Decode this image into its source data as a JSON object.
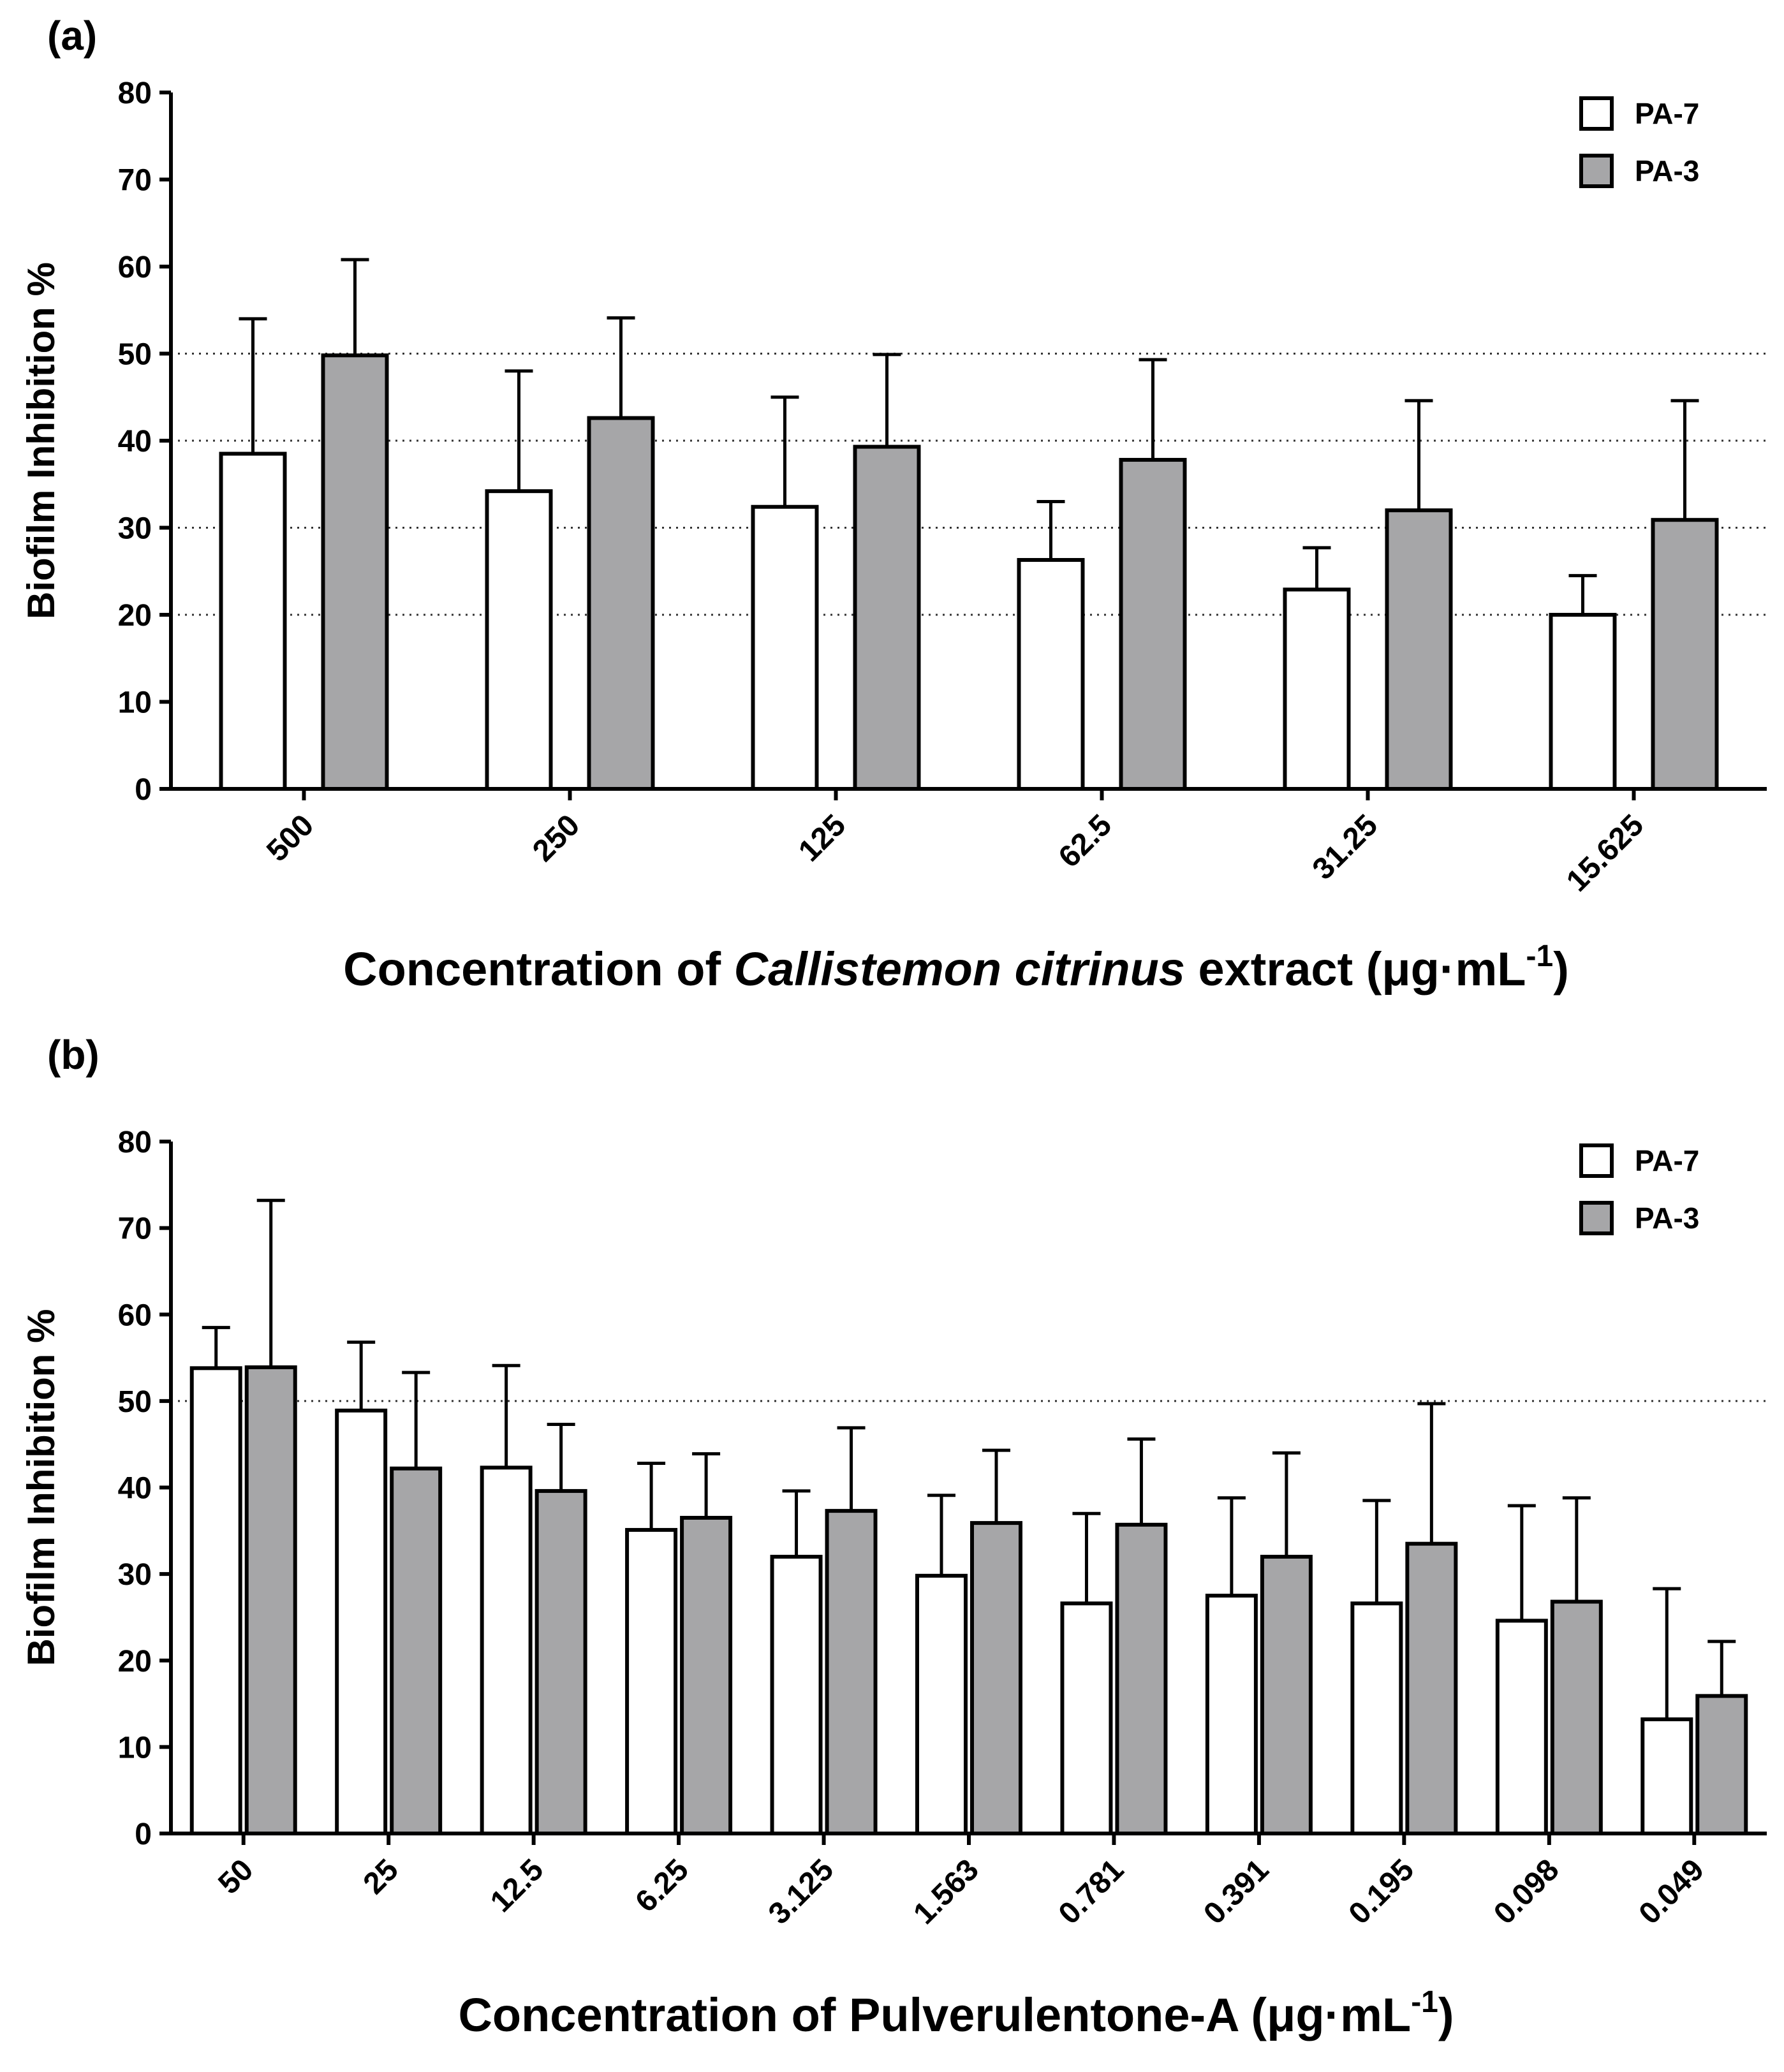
{
  "colors": {
    "pa7": "#ffffff",
    "pa3": "#a6a6a8",
    "axis": "#000000"
  },
  "chart_data": [
    {
      "panel_label": "(a)",
      "type": "bar",
      "ylabel": "Biofilm Inhibition %",
      "xlabel_prefix": "Concentration of ",
      "xlabel_italic": "Callistemon citrinus",
      "xlabel_suffix": " extract  (μg·mL",
      "xlabel_sup": "-1",
      "xlabel_close": ")",
      "ylim": [
        0,
        80
      ],
      "yticks": [
        "0",
        "10",
        "20",
        "30",
        "40",
        "50",
        "60",
        "70",
        "80"
      ],
      "gridlines": [
        20,
        30,
        40,
        50
      ],
      "legend": [
        "PA-7",
        "PA-3"
      ],
      "categories": [
        "500",
        "250",
        "125",
        "62.5",
        "31.25",
        "15.625"
      ],
      "series": [
        {
          "name": "PA-7",
          "values": [
            38.5,
            34.2,
            32.4,
            26.3,
            22.9,
            20.0
          ],
          "err": [
            15.5,
            13.8,
            12.6,
            6.7,
            4.8,
            4.5
          ]
        },
        {
          "name": "PA-3",
          "values": [
            49.8,
            42.6,
            39.3,
            37.8,
            32.0,
            30.9
          ],
          "err": [
            11.0,
            11.5,
            10.6,
            11.5,
            12.6,
            13.7
          ]
        }
      ]
    },
    {
      "panel_label": "(b)",
      "type": "bar",
      "ylabel": "Biofilm Inhibition %",
      "xlabel_prefix": "Concentration of Pulverulentone-A  (μg·mL",
      "xlabel_italic": "",
      "xlabel_suffix": "",
      "xlabel_sup": "-1",
      "xlabel_close": ")",
      "ylim": [
        0,
        80
      ],
      "yticks": [
        "0",
        "10",
        "20",
        "30",
        "40",
        "50",
        "60",
        "70",
        "80"
      ],
      "gridlines": [
        50
      ],
      "legend": [
        "PA-7",
        "PA-3"
      ],
      "categories": [
        "50",
        "25",
        "12.5",
        "6.25",
        "3.125",
        "1.563",
        "0.781",
        "0.391",
        "0.195",
        "0.098",
        "0.049"
      ],
      "series": [
        {
          "name": "PA-7",
          "values": [
            53.8,
            48.9,
            42.3,
            35.1,
            32.0,
            29.8,
            26.6,
            27.5,
            26.6,
            24.6,
            13.2
          ],
          "err": [
            4.7,
            7.9,
            11.8,
            7.7,
            7.6,
            9.3,
            10.4,
            11.3,
            11.9,
            13.3,
            15.1
          ]
        },
        {
          "name": "PA-3",
          "values": [
            53.9,
            42.2,
            39.6,
            36.5,
            37.3,
            35.9,
            35.7,
            32.0,
            33.5,
            26.8,
            15.9
          ],
          "err": [
            19.3,
            11.1,
            7.7,
            7.4,
            9.6,
            8.4,
            9.9,
            12.0,
            16.2,
            12.0,
            6.3
          ]
        }
      ]
    }
  ]
}
